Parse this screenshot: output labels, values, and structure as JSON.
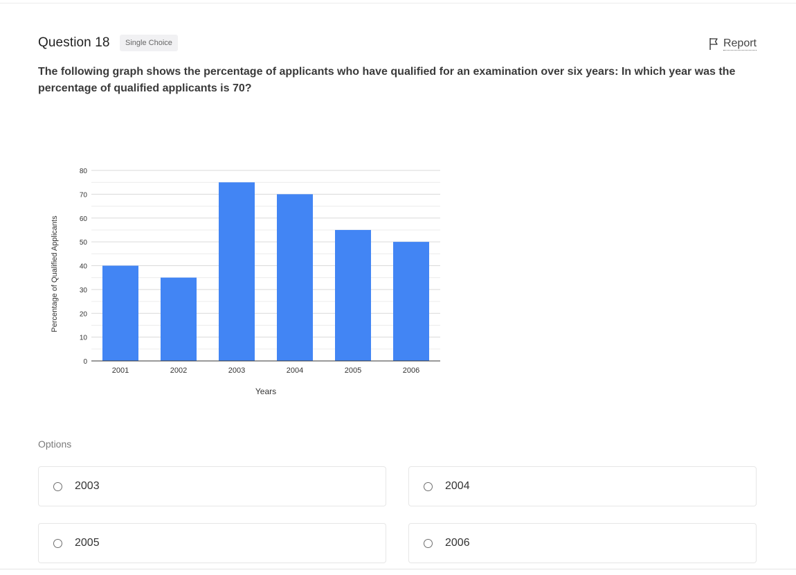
{
  "question": {
    "title": "Question 18",
    "type_badge": "Single Choice",
    "report_label": "Report",
    "report_icon": "flag-icon",
    "text": "The following graph shows the percentage of applicants who have qualified for an examination over six years: In which year was the percentage of qualified applicants is 70?"
  },
  "chart_data": {
    "type": "bar",
    "categories": [
      "2001",
      "2002",
      "2003",
      "2004",
      "2005",
      "2006"
    ],
    "values": [
      40,
      35,
      75,
      70,
      55,
      50
    ],
    "xlabel": "Years",
    "ylabel": "Percentage of Qualified Applicants",
    "ylim": [
      0,
      80
    ],
    "yticks": [
      0,
      10,
      20,
      30,
      40,
      50,
      60,
      70,
      80
    ],
    "grid": true,
    "bar_color": "#4285f4",
    "grid_color": "#d9d9d9"
  },
  "options_label": "Options",
  "options": [
    {
      "label": "2003"
    },
    {
      "label": "2004"
    },
    {
      "label": "2005"
    },
    {
      "label": "2006"
    }
  ]
}
